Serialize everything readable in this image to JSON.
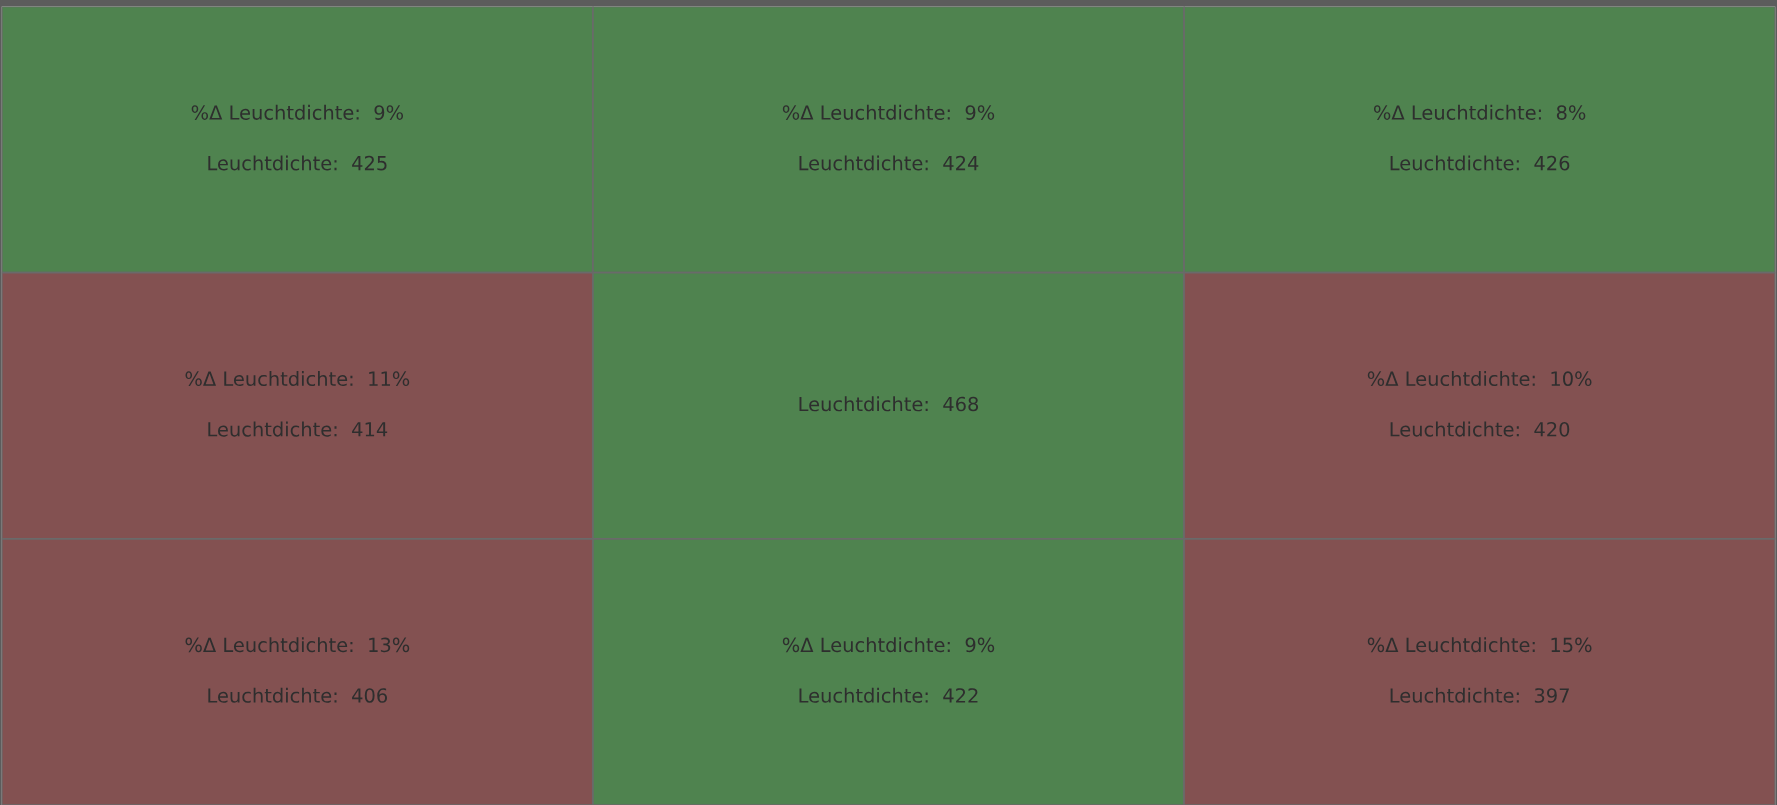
{
  "chart_data": {
    "type": "heatmap",
    "categories": [
      null,
      null,
      null
    ],
    "y_categories": [
      null,
      null,
      null
    ],
    "cells": [
      [
        425,
        424,
        426
      ],
      [
        414,
        468,
        420
      ],
      [
        406,
        422,
        397
      ]
    ],
    "cell_labels": [
      [
        "Leuchtdichte:  425",
        "Leuchtdichte:  424",
        "Leuchtdichte:  426"
      ],
      [
        "Leuchtdichte:  414",
        "Leuchtdichte:  468",
        "Leuchtdichte:  420"
      ],
      [
        "Leuchtdichte:  406",
        "Leuchtdichte:  422",
        "Leuchtdichte:  397"
      ]
    ],
    "annotations": [
      "%Δ Leuchtdichte:  9%",
      "%Δ Leuchtdichte:  9%",
      "%Δ Leuchtdichte:  8%",
      "%Δ Leuchtdichte:  11%",
      null,
      "%Δ Leuchtdichte:  10%",
      "%Δ Leuchtdichte:  13%",
      "%Δ Leuchtdichte:  9%",
      "%Δ Leuchtdichte:  15%"
    ],
    "colors": [
      [
        "#4f834f",
        "#4f834f",
        "#4f834f"
      ],
      [
        "#835151",
        "#4f834f",
        "#835151"
      ],
      [
        "#835151",
        "#4f834f",
        "#835151"
      ]
    ],
    "tick_labels": false
  }
}
